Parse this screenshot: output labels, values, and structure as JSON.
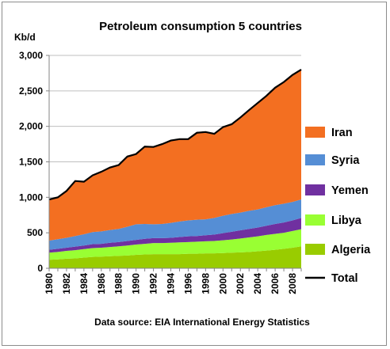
{
  "chart_data": {
    "type": "area",
    "title": "Petroleum consumption 5 countries",
    "ylabel": "Kb/d",
    "source": "Data source: EIA International Energy Statistics",
    "ylim": [
      0,
      3000
    ],
    "yticks": [
      0,
      500,
      1000,
      1500,
      2000,
      2500,
      3000
    ],
    "ytick_labels": [
      "0",
      "500",
      "1,000",
      "1,500",
      "2,000",
      "2,500",
      "3,000"
    ],
    "x": [
      1980,
      1981,
      1982,
      1983,
      1984,
      1985,
      1986,
      1987,
      1988,
      1989,
      1990,
      1991,
      1992,
      1993,
      1994,
      1995,
      1996,
      1997,
      1998,
      1999,
      2000,
      2001,
      2002,
      2003,
      2004,
      2005,
      2006,
      2007,
      2008,
      2009
    ],
    "xtick_labels": [
      "1980",
      "1982",
      "1984",
      "1986",
      "1988",
      "1990",
      "1992",
      "1994",
      "1996",
      "1998",
      "2000",
      "2002",
      "2004",
      "2006",
      "2008"
    ],
    "grid": "horizontal",
    "legend_position": "right",
    "series": [
      {
        "name": "Algeria",
        "color": "#99cc00",
        "values": [
          120,
          125,
          135,
          140,
          150,
          160,
          165,
          170,
          175,
          180,
          190,
          195,
          200,
          200,
          200,
          200,
          205,
          205,
          210,
          210,
          215,
          220,
          225,
          230,
          240,
          250,
          260,
          275,
          290,
          310
        ]
      },
      {
        "name": "Libya",
        "color": "#99ff33",
        "values": [
          100,
          105,
          110,
          115,
          120,
          125,
          125,
          130,
          135,
          140,
          145,
          150,
          155,
          155,
          160,
          165,
          165,
          170,
          170,
          175,
          180,
          185,
          195,
          205,
          210,
          220,
          225,
          225,
          235,
          240
        ]
      },
      {
        "name": "Yemen",
        "color": "#7030a0",
        "values": [
          40,
          45,
          45,
          50,
          50,
          55,
          55,
          60,
          60,
          65,
          65,
          70,
          70,
          70,
          70,
          75,
          80,
          80,
          85,
          90,
          100,
          110,
          115,
          120,
          125,
          130,
          140,
          145,
          150,
          160
        ]
      },
      {
        "name": "Syria",
        "color": "#558ed5",
        "values": [
          130,
          135,
          140,
          150,
          160,
          170,
          175,
          180,
          185,
          200,
          220,
          210,
          195,
          200,
          210,
          220,
          225,
          230,
          225,
          235,
          245,
          250,
          250,
          255,
          255,
          260,
          265,
          265,
          260,
          260
        ]
      },
      {
        "name": "Iran",
        "color": "#f36f21",
        "values": [
          580,
          590,
          660,
          775,
          740,
          800,
          840,
          880,
          900,
          990,
          990,
          1090,
          1090,
          1125,
          1160,
          1160,
          1145,
          1225,
          1230,
          1185,
          1250,
          1265,
          1340,
          1420,
          1500,
          1570,
          1655,
          1715,
          1790,
          1830
        ]
      }
    ],
    "total": {
      "name": "Total",
      "color": "#000000",
      "values": [
        970,
        1000,
        1090,
        1230,
        1220,
        1310,
        1360,
        1420,
        1455,
        1575,
        1610,
        1715,
        1710,
        1750,
        1800,
        1820,
        1820,
        1910,
        1920,
        1895,
        1990,
        2030,
        2125,
        2230,
        2330,
        2430,
        2545,
        2625,
        2725,
        2800
      ]
    }
  }
}
